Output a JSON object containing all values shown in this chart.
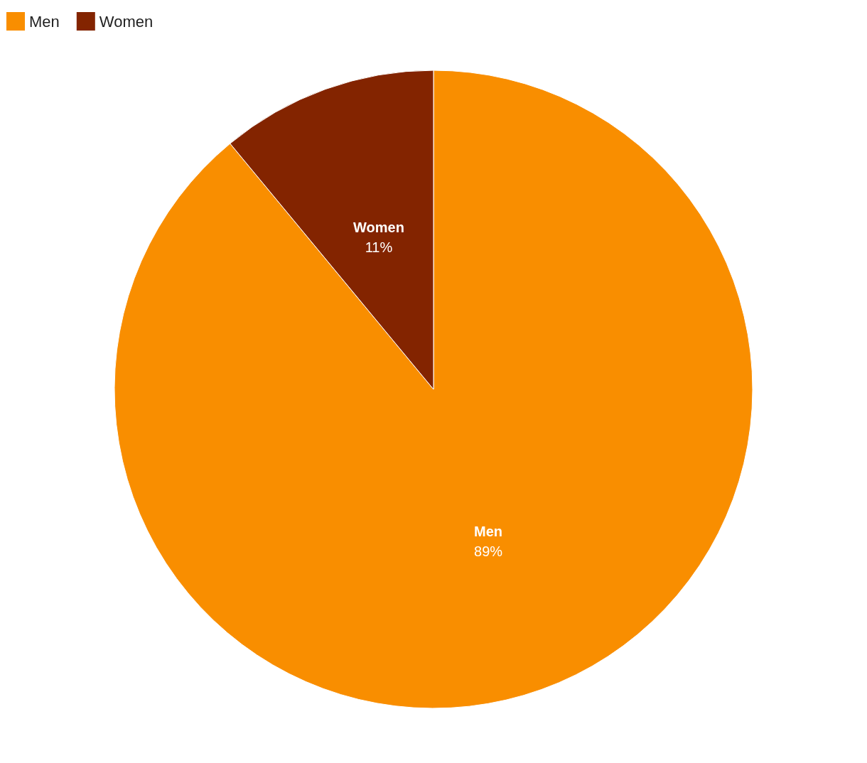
{
  "chart_data": {
    "type": "pie",
    "categories": [
      "Men",
      "Women"
    ],
    "values": [
      89,
      11
    ],
    "colors": [
      "#f98e00",
      "#832400"
    ],
    "value_labels": [
      "89%",
      "11%"
    ],
    "legend": "top left"
  }
}
